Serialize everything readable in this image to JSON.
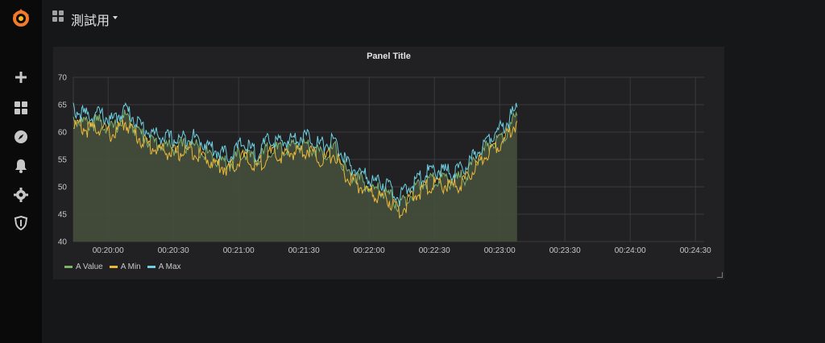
{
  "header": {
    "dashboard_title": "測試用"
  },
  "sidebar": {
    "items": [
      {
        "icon": "plus-icon"
      },
      {
        "icon": "dashboards-icon"
      },
      {
        "icon": "explore-icon"
      },
      {
        "icon": "bell-icon"
      },
      {
        "icon": "gear-icon"
      },
      {
        "icon": "shield-icon"
      }
    ]
  },
  "colors": {
    "value": "#7eb26d",
    "min": "#eab839",
    "max": "#6ed0e0",
    "area": "#47503d"
  },
  "chart_data": {
    "type": "line",
    "title": "Panel Title",
    "x_tick_labels": [
      "00:20:00",
      "00:20:30",
      "00:21:00",
      "00:21:30",
      "00:22:00",
      "00:22:30",
      "00:23:00",
      "00:23:30",
      "00:24:00",
      "00:24:30"
    ],
    "x_start": "00:19:44",
    "x_end": "00:24:34",
    "y_ticks": [
      40,
      45,
      50,
      55,
      60,
      65,
      70
    ],
    "ylim": [
      40,
      70
    ],
    "grid": true,
    "legend_position": "bottom-left",
    "series": [
      {
        "name": "A Value",
        "values": [
          [
            "00:19:44",
            62.5
          ],
          [
            "00:19:50",
            61.5
          ],
          [
            "00:19:56",
            61.8
          ],
          [
            "00:20:02",
            60.5
          ],
          [
            "00:20:08",
            62.8
          ],
          [
            "00:20:14",
            60.0
          ],
          [
            "00:20:20",
            58.2
          ],
          [
            "00:20:26",
            57.5
          ],
          [
            "00:20:32",
            57.0
          ],
          [
            "00:20:38",
            57.8
          ],
          [
            "00:20:44",
            56.5
          ],
          [
            "00:20:50",
            55.0
          ],
          [
            "00:20:56",
            54.2
          ],
          [
            "00:21:02",
            56.5
          ],
          [
            "00:21:08",
            54.5
          ],
          [
            "00:21:14",
            57.0
          ],
          [
            "00:21:20",
            56.5
          ],
          [
            "00:21:26",
            57.5
          ],
          [
            "00:21:32",
            57.8
          ],
          [
            "00:21:38",
            56.0
          ],
          [
            "00:21:44",
            57.0
          ],
          [
            "00:21:50",
            52.5
          ],
          [
            "00:21:56",
            51.0
          ],
          [
            "00:22:02",
            49.5
          ],
          [
            "00:22:08",
            49.0
          ],
          [
            "00:22:14",
            46.5
          ],
          [
            "00:22:20",
            49.0
          ],
          [
            "00:22:26",
            51.0
          ],
          [
            "00:22:32",
            51.5
          ],
          [
            "00:22:38",
            51.0
          ],
          [
            "00:22:44",
            51.8
          ],
          [
            "00:22:50",
            55.0
          ],
          [
            "00:22:56",
            58.0
          ],
          [
            "00:23:02",
            59.5
          ],
          [
            "00:23:08",
            63.0
          ]
        ]
      },
      {
        "name": "A Min",
        "values": [
          [
            "00:19:44",
            61.5
          ],
          [
            "00:19:50",
            60.5
          ],
          [
            "00:19:56",
            60.8
          ],
          [
            "00:20:02",
            59.5
          ],
          [
            "00:20:08",
            61.8
          ],
          [
            "00:20:14",
            59.0
          ],
          [
            "00:20:20",
            57.2
          ],
          [
            "00:20:26",
            56.5
          ],
          [
            "00:20:32",
            56.0
          ],
          [
            "00:20:38",
            56.8
          ],
          [
            "00:20:44",
            55.5
          ],
          [
            "00:20:50",
            54.0
          ],
          [
            "00:20:56",
            53.2
          ],
          [
            "00:21:02",
            55.5
          ],
          [
            "00:21:08",
            53.5
          ],
          [
            "00:21:14",
            56.0
          ],
          [
            "00:21:20",
            55.5
          ],
          [
            "00:21:26",
            56.5
          ],
          [
            "00:21:32",
            56.8
          ],
          [
            "00:21:38",
            55.0
          ],
          [
            "00:21:44",
            56.0
          ],
          [
            "00:21:50",
            51.5
          ],
          [
            "00:21:56",
            50.0
          ],
          [
            "00:22:02",
            48.5
          ],
          [
            "00:22:08",
            48.0
          ],
          [
            "00:22:14",
            45.5
          ],
          [
            "00:22:20",
            48.0
          ],
          [
            "00:22:26",
            50.0
          ],
          [
            "00:22:32",
            50.5
          ],
          [
            "00:22:38",
            50.0
          ],
          [
            "00:22:44",
            50.8
          ],
          [
            "00:22:50",
            54.0
          ],
          [
            "00:22:56",
            57.0
          ],
          [
            "00:23:02",
            58.5
          ],
          [
            "00:23:08",
            62.0
          ]
        ]
      },
      {
        "name": "A Max",
        "values": [
          [
            "00:19:44",
            64.0
          ],
          [
            "00:19:50",
            63.0
          ],
          [
            "00:19:56",
            63.3
          ],
          [
            "00:20:02",
            62.0
          ],
          [
            "00:20:08",
            64.3
          ],
          [
            "00:20:14",
            61.5
          ],
          [
            "00:20:20",
            59.7
          ],
          [
            "00:20:26",
            59.0
          ],
          [
            "00:20:32",
            58.5
          ],
          [
            "00:20:38",
            59.3
          ],
          [
            "00:20:44",
            58.0
          ],
          [
            "00:20:50",
            56.5
          ],
          [
            "00:20:56",
            55.7
          ],
          [
            "00:21:02",
            58.0
          ],
          [
            "00:21:08",
            56.0
          ],
          [
            "00:21:14",
            58.5
          ],
          [
            "00:21:20",
            58.0
          ],
          [
            "00:21:26",
            59.0
          ],
          [
            "00:21:32",
            59.3
          ],
          [
            "00:21:38",
            57.5
          ],
          [
            "00:21:44",
            58.5
          ],
          [
            "00:21:50",
            54.0
          ],
          [
            "00:21:56",
            52.5
          ],
          [
            "00:22:02",
            51.0
          ],
          [
            "00:22:08",
            50.5
          ],
          [
            "00:22:14",
            48.0
          ],
          [
            "00:22:20",
            50.5
          ],
          [
            "00:22:26",
            52.5
          ],
          [
            "00:22:32",
            53.0
          ],
          [
            "00:22:38",
            52.5
          ],
          [
            "00:22:44",
            53.3
          ],
          [
            "00:22:50",
            56.5
          ],
          [
            "00:22:56",
            59.5
          ],
          [
            "00:23:02",
            61.0
          ],
          [
            "00:23:08",
            64.5
          ]
        ]
      }
    ]
  }
}
